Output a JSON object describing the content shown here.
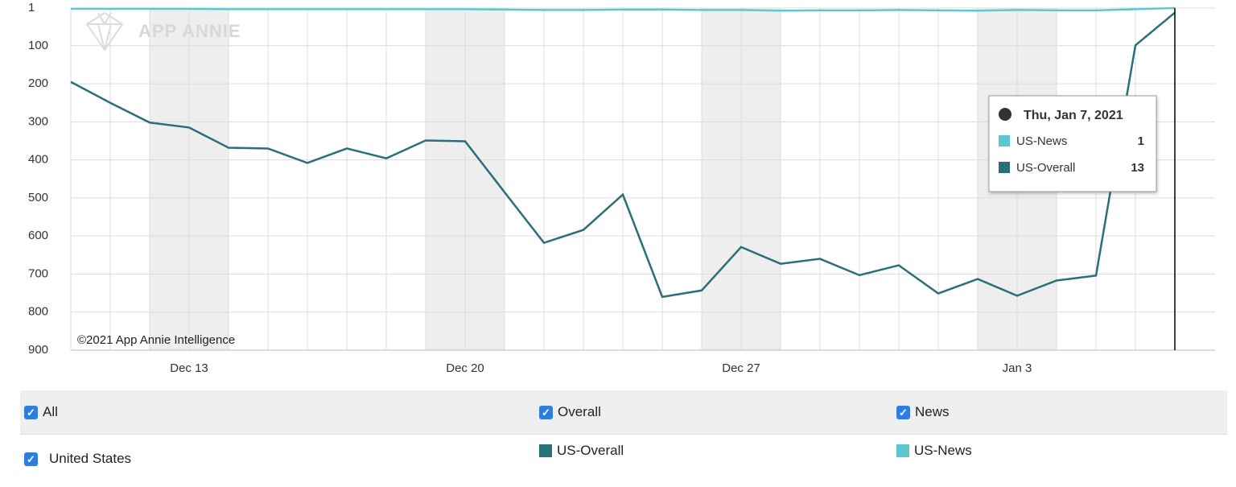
{
  "chart_data": {
    "type": "line",
    "watermark": "APP ANNIE",
    "copyright": "©2021 App Annie Intelligence",
    "categories": [
      null,
      null,
      null,
      "Dec 13",
      null,
      null,
      null,
      null,
      null,
      null,
      "Dec 20",
      null,
      null,
      null,
      null,
      null,
      null,
      "Dec 27",
      null,
      null,
      null,
      null,
      null,
      null,
      "Jan 3",
      null,
      null,
      null,
      null
    ],
    "series": [
      {
        "name": "US-News",
        "color": "#5bc8d1",
        "values": [
          3,
          3,
          3,
          3,
          4,
          4,
          4,
          4,
          4,
          4,
          4,
          5,
          6,
          6,
          5,
          5,
          6,
          6,
          8,
          7,
          7,
          6,
          7,
          8,
          6,
          7,
          7,
          4,
          1
        ]
      },
      {
        "name": "US-Overall",
        "color": "#2a6f7a",
        "values": [
          195,
          250,
          302,
          315,
          368,
          370,
          408,
          370,
          396,
          349,
          351,
          485,
          618,
          584,
          491,
          760,
          743,
          629,
          673,
          660,
          703,
          677,
          751,
          713,
          757,
          717,
          704,
          99,
          13
        ]
      }
    ],
    "ylim": [
      1,
      900
    ],
    "invert_y": true,
    "yticks": [
      1,
      100,
      200,
      300,
      400,
      500,
      600,
      700,
      800,
      900
    ],
    "grid": true,
    "tooltip": {
      "title": "Thu, Jan 7, 2021",
      "index": 28
    }
  },
  "filters": {
    "row1": [
      "All",
      "Overall",
      "News"
    ],
    "row2": "United States"
  }
}
